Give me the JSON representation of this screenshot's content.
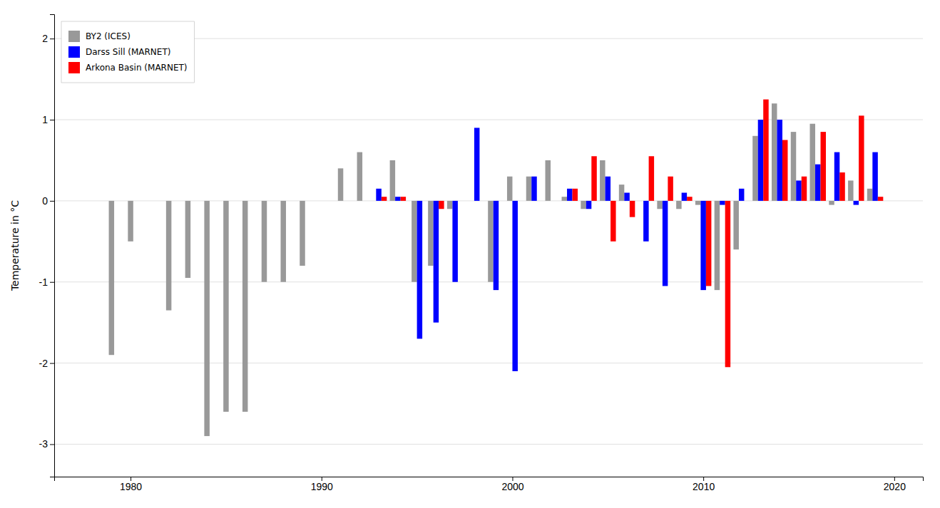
{
  "chart_data": {
    "type": "bar",
    "ylabel": "Temperature in °C",
    "x": [
      1978,
      1979,
      1980,
      1981,
      1982,
      1983,
      1984,
      1985,
      1986,
      1987,
      1988,
      1989,
      1990,
      1991,
      1992,
      1993,
      1994,
      1995,
      1996,
      1997,
      1998,
      1999,
      2000,
      2001,
      2002,
      2003,
      2004,
      2005,
      2006,
      2007,
      2008,
      2009,
      2010,
      2011,
      2012,
      2013,
      2014,
      2015,
      2016,
      2017,
      2018,
      2019
    ],
    "series": [
      {
        "name": "BY2 (ICES)",
        "color": "#999999",
        "values": [
          0.0,
          -1.9,
          -0.5,
          0.0,
          -1.35,
          -0.95,
          -2.9,
          -2.6,
          -2.6,
          -1.0,
          -1.0,
          -0.8,
          0.0,
          0.4,
          0.6,
          0.0,
          0.5,
          -1.0,
          -0.8,
          -0.1,
          0.0,
          -1.0,
          0.3,
          0.3,
          0.5,
          0.05,
          -0.1,
          0.5,
          0.2,
          0.0,
          -0.1,
          -0.1,
          -0.05,
          -1.1,
          -0.6,
          0.8,
          1.2,
          0.85,
          0.95,
          -0.05,
          0.25,
          0.15
        ]
      },
      {
        "name": "Darss Sill (MARNET)",
        "color": "#0000FF",
        "values": [
          null,
          null,
          null,
          null,
          null,
          null,
          null,
          null,
          null,
          null,
          null,
          null,
          null,
          null,
          null,
          0.15,
          0.05,
          -1.7,
          -1.5,
          -1.0,
          0.9,
          -1.1,
          -2.1,
          0.3,
          0.0,
          0.15,
          -0.1,
          0.3,
          0.1,
          -0.5,
          -1.05,
          0.1,
          -1.1,
          -0.05,
          0.15,
          1.0,
          1.0,
          0.25,
          0.45,
          0.6,
          -0.05,
          0.6
        ]
      },
      {
        "name": "Arkona Basin (MARNET)",
        "color": "#FF0000",
        "values": [
          null,
          null,
          null,
          null,
          null,
          null,
          null,
          null,
          null,
          null,
          null,
          null,
          null,
          null,
          null,
          0.05,
          0.05,
          null,
          -0.1,
          0.0,
          null,
          null,
          null,
          null,
          null,
          0.15,
          0.55,
          -0.5,
          -0.2,
          0.55,
          0.3,
          0.05,
          -1.05,
          -2.05,
          0.0,
          1.25,
          0.75,
          0.3,
          0.85,
          0.35,
          1.05,
          0.05
        ]
      }
    ],
    "xlim": [
      1976.0,
      2021.5
    ],
    "ylim": [
      -3.4,
      2.3
    ],
    "xticks": [
      1980,
      1990,
      2000,
      2010,
      2020
    ],
    "yticks": [
      -3,
      -2,
      -1,
      0,
      1,
      2
    ],
    "grid": true,
    "legend": "upper left"
  }
}
